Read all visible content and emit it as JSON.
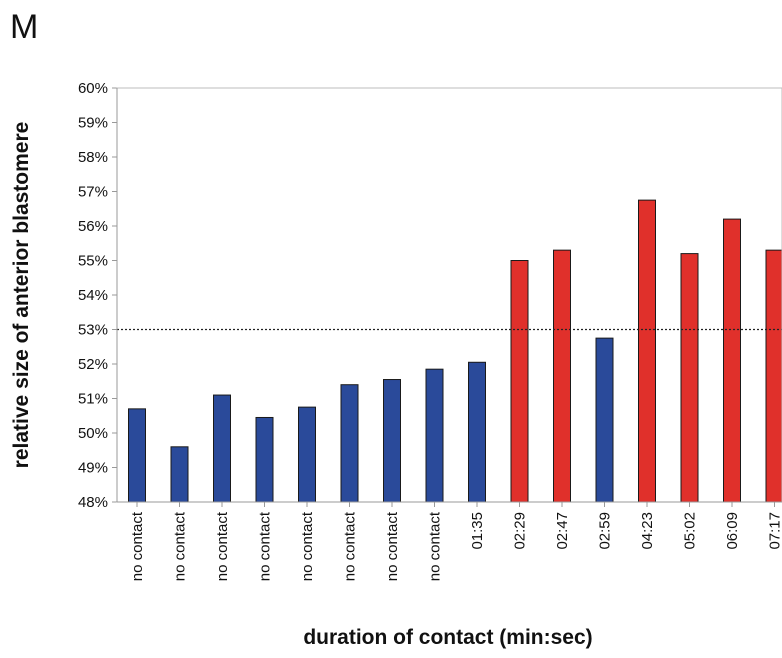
{
  "panel_label": "M",
  "chart_data": {
    "type": "bar",
    "title": "",
    "xlabel": "duration of contact (min:sec)",
    "ylabel": "relative size of anterior blastomere",
    "ylim": [
      48,
      60
    ],
    "yticks": [
      48,
      49,
      50,
      51,
      52,
      53,
      54,
      55,
      56,
      57,
      58,
      59,
      60
    ],
    "ytick_suffix": "%",
    "categories": [
      "no contact",
      "no contact",
      "no contact",
      "no contact",
      "no contact",
      "no contact",
      "no contact",
      "no contact",
      "01:35",
      "02:29",
      "02:47",
      "02:59",
      "04:23",
      "05:02",
      "06:09",
      "07:17"
    ],
    "values": [
      50.7,
      49.6,
      51.1,
      50.45,
      50.75,
      51.4,
      51.55,
      51.85,
      52.05,
      55.0,
      55.3,
      52.75,
      56.75,
      55.2,
      56.2,
      55.3
    ],
    "bar_colors": [
      "#2a4a9a",
      "#2a4a9a",
      "#2a4a9a",
      "#2a4a9a",
      "#2a4a9a",
      "#2a4a9a",
      "#2a4a9a",
      "#2a4a9a",
      "#2a4a9a",
      "#e0302b",
      "#e0302b",
      "#2a4a9a",
      "#e0302b",
      "#e0302b",
      "#e0302b",
      "#e0302b"
    ],
    "reference_line": 53,
    "grid": false,
    "legend": "none"
  }
}
